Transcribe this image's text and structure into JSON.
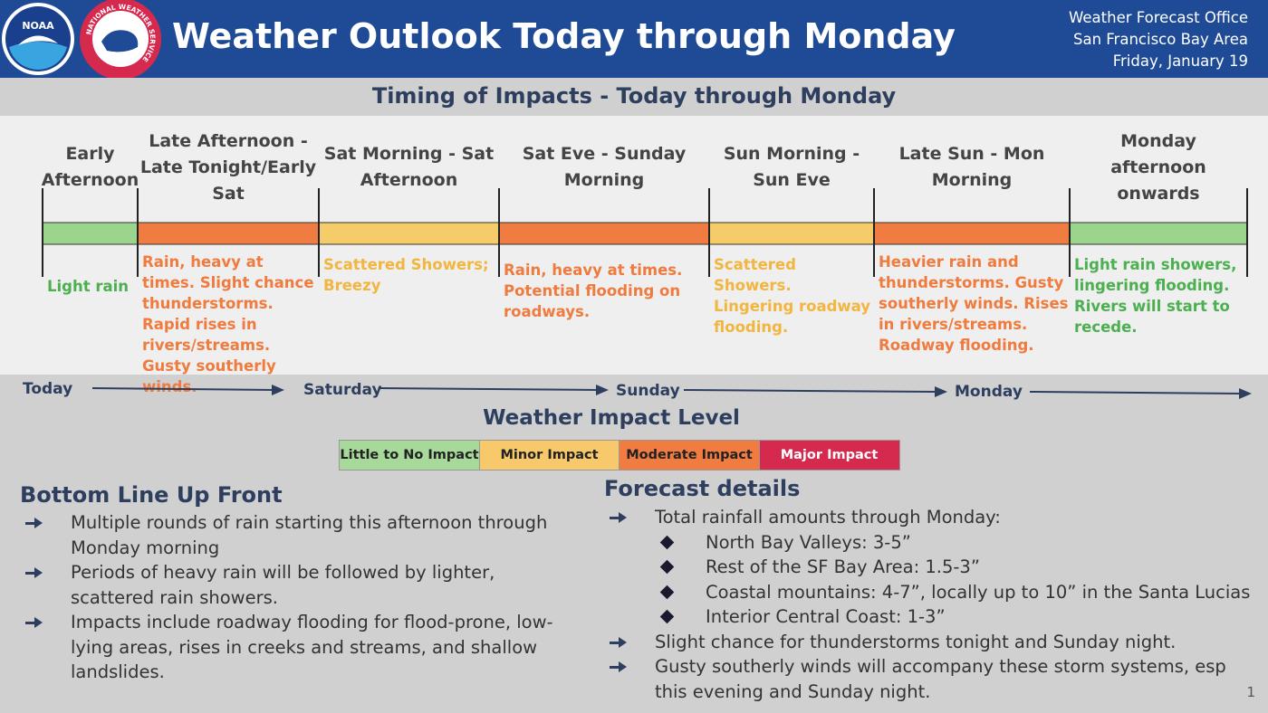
{
  "header": {
    "logos": [
      "NOAA",
      "NATIONAL WEATHER SERVICE"
    ],
    "title": "Weather Outlook Today through Monday",
    "office": [
      "Weather Forecast Office",
      "San Francisco Bay Area",
      "Friday, January 19"
    ]
  },
  "timing": {
    "title": "Timing of Impacts - Today through Monday",
    "periods": [
      {
        "label": "Early Afternoon",
        "description": "Light rain",
        "color": "#9ad48d",
        "text_color": "#4caf50"
      },
      {
        "label": "Late Afternoon - Late Tonight/Early Sat",
        "description": "Rain, heavy at times. Slight chance thunderstorms.  Rapid rises in rivers/streams. Gusty southerly winds.",
        "color": "#f07c42",
        "text_color": "#ef7b3e"
      },
      {
        "label": "Sat Morning - Sat Afternoon",
        "description": "Scattered Showers; Breezy",
        "color": "#f6cb6a",
        "text_color": "#f2b640"
      },
      {
        "label": "Sat Eve - Sunday Morning",
        "description": "Rain, heavy at times. Potential flooding on roadways.",
        "color": "#f07c42",
        "text_color": "#ef7b3e"
      },
      {
        "label": "Sun Morning - Sun Eve",
        "description": "Scattered Showers. Lingering roadway flooding.",
        "color": "#f6cb6a",
        "text_color": "#f2b640"
      },
      {
        "label": "Late Sun - Mon Morning",
        "description": "Heavier rain and thunderstorms. Gusty southerly winds. Rises in rivers/streams. Roadway flooding.",
        "color": "#f07c42",
        "text_color": "#ef7b3e"
      },
      {
        "label": "Monday afternoon onwards",
        "description": "Light rain showers, lingering flooding. Rivers will start to recede.",
        "color": "#9ad48d",
        "text_color": "#4caf50"
      }
    ],
    "timeline": [
      "Today",
      "Saturday",
      "Sunday",
      "Monday"
    ]
  },
  "legend": {
    "title": "Weather Impact Level",
    "levels": [
      {
        "label": "Little to No Impact",
        "color": "#a6d99a"
      },
      {
        "label": "Minor Impact",
        "color": "#f7c96a"
      },
      {
        "label": "Moderate Impact",
        "color": "#f07c42"
      },
      {
        "label": "Major Impact",
        "color": "#d6294e"
      }
    ]
  },
  "bottom_line": {
    "heading": "Bottom Line Up Front",
    "items": [
      "Multiple rounds of rain starting this afternoon through Monday morning",
      "Periods of heavy rain will be followed by lighter, scattered rain showers.",
      "Impacts include roadway flooding for flood-prone, low-lying areas, rises in creeks and streams, and shallow landslides."
    ]
  },
  "forecast": {
    "heading": "Forecast details",
    "items": [
      {
        "text": "Total rainfall amounts through Monday:",
        "subitems": [
          "North Bay Valleys: 3-5”",
          "Rest of the SF Bay Area: 1.5-3”",
          "Coastal mountains: 4-7”, locally up to 10” in the Santa Lucias",
          "Interior Central Coast: 1-3”"
        ]
      },
      {
        "text": "Slight chance for thunderstorms tonight and Sunday night."
      },
      {
        "text": "Gusty southerly winds will accompany these storm systems, esp this evening and Sunday night."
      }
    ]
  },
  "page_number": "1"
}
